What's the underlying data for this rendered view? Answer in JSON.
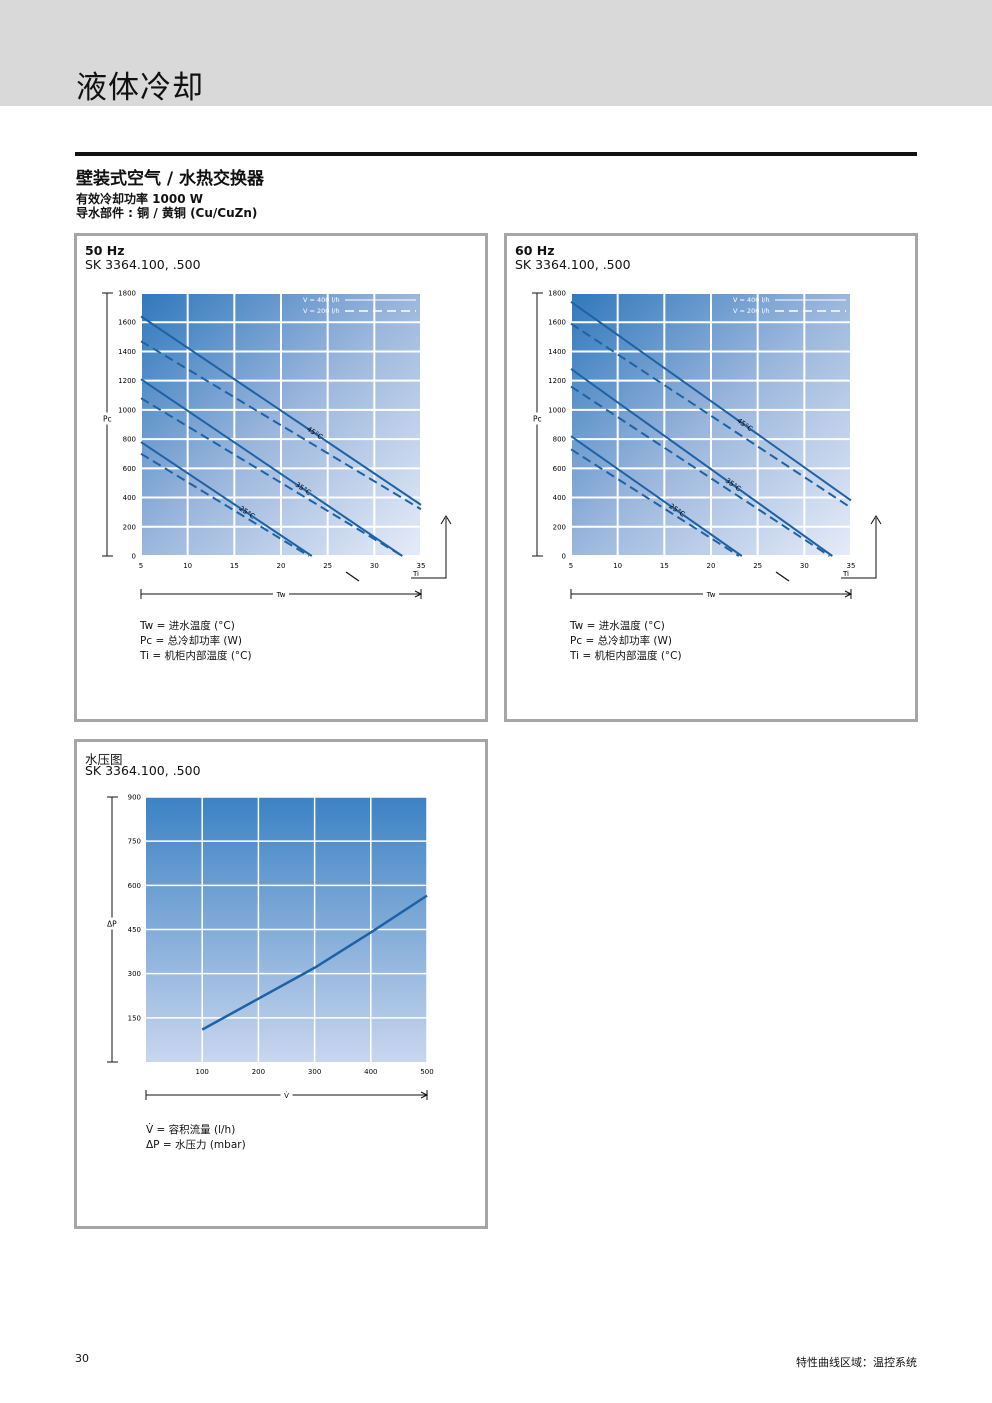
{
  "page": {
    "title": "液体冷却",
    "heading": "壁装式空气 / 水热交换器",
    "subheading1": "有效冷却功率 1000 W",
    "subheading2": "导水部件 : 铜 / 黄铜 (Cu/CuZn)",
    "page_number": "30",
    "footer_text": "特性曲线区域：温控系统"
  },
  "panels": {
    "hz50": {
      "title": "50 Hz",
      "model": "SK 3364.100, .500",
      "legend": [
        "Tw = 进水温度 (°C)",
        "Pc = 总冷却功率 (W)",
        "Ti = 机柜内部温度 (°C)"
      ]
    },
    "hz60": {
      "title": "60 Hz",
      "model": "SK 3364.100, .500",
      "legend": [
        "Tw = 进水温度 (°C)",
        "Pc = 总冷却功率 (W)",
        "Ti = 机柜内部温度 (°C)"
      ]
    },
    "pressure": {
      "title": "水压图",
      "model": "SK 3364.100, .500",
      "legend": [
        "V̇ = 容积流量 (l/h)",
        "ΔP = 水压力 (mbar)"
      ]
    }
  },
  "chart_data": [
    {
      "type": "line",
      "title": "50 Hz",
      "xlabel": "Tw",
      "ylabel": "Pc",
      "xlim": [
        5,
        35
      ],
      "ylim": [
        0,
        1800
      ],
      "x_ticks": [
        5,
        10,
        15,
        20,
        25,
        30,
        35
      ],
      "y_ticks": [
        0,
        200,
        400,
        600,
        800,
        1000,
        1200,
        1400,
        1600,
        1800
      ],
      "grid": true,
      "legend_position": "top-right",
      "legend_entries": [
        "V = 400 l/h",
        "V = 200 l/h"
      ],
      "extra_axis_label": "Ti",
      "series": [
        {
          "name": "V = 400 l/h",
          "label": "45°C",
          "x": [
            5,
            35
          ],
          "y": [
            1640,
            350
          ]
        },
        {
          "name": "V = 200 l/h",
          "label": "45°C",
          "x": [
            5,
            35
          ],
          "y": [
            1470,
            320
          ]
        },
        {
          "name": "V = 400 l/h",
          "label": "35°C",
          "x": [
            5,
            33
          ],
          "y": [
            1210,
            0
          ]
        },
        {
          "name": "V = 200 l/h",
          "label": "35°C",
          "x": [
            5,
            33
          ],
          "y": [
            1080,
            0
          ]
        },
        {
          "name": "V = 400 l/h",
          "label": "25°C",
          "x": [
            5,
            23.3
          ],
          "y": [
            780,
            0
          ]
        },
        {
          "name": "V = 200 l/h",
          "label": "25°C",
          "x": [
            5,
            23
          ],
          "y": [
            700,
            0
          ]
        }
      ]
    },
    {
      "type": "line",
      "title": "60 Hz",
      "xlabel": "Tw",
      "ylabel": "Pc",
      "xlim": [
        5,
        35
      ],
      "ylim": [
        0,
        1800
      ],
      "x_ticks": [
        5,
        10,
        15,
        20,
        25,
        30,
        35
      ],
      "y_ticks": [
        0,
        200,
        400,
        600,
        800,
        1000,
        1200,
        1400,
        1600,
        1800
      ],
      "grid": true,
      "legend_position": "top-right",
      "legend_entries": [
        "V = 400 l/h",
        "V = 200 l/h"
      ],
      "extra_axis_label": "Ti",
      "series": [
        {
          "name": "V = 400 l/h",
          "label": "45°C",
          "x": [
            5,
            35
          ],
          "y": [
            1740,
            380
          ]
        },
        {
          "name": "V = 200 l/h",
          "label": "45°C",
          "x": [
            5,
            35
          ],
          "y": [
            1590,
            330
          ]
        },
        {
          "name": "V = 400 l/h",
          "label": "35°C",
          "x": [
            5,
            33
          ],
          "y": [
            1280,
            0
          ]
        },
        {
          "name": "V = 200 l/h",
          "label": "35°C",
          "x": [
            5,
            32.7
          ],
          "y": [
            1160,
            0
          ]
        },
        {
          "name": "V = 400 l/h",
          "label": "25°C",
          "x": [
            5,
            23.3
          ],
          "y": [
            820,
            0
          ]
        },
        {
          "name": "V = 200 l/h",
          "label": "25°C",
          "x": [
            5,
            23
          ],
          "y": [
            730,
            0
          ]
        }
      ]
    },
    {
      "type": "line",
      "title": "水压图",
      "xlabel": "V̇",
      "ylabel": "ΔP",
      "xlim": [
        0,
        500
      ],
      "ylim": [
        0,
        900
      ],
      "x_ticks": [
        100,
        200,
        300,
        400,
        500
      ],
      "y_ticks": [
        150,
        300,
        450,
        600,
        750,
        900
      ],
      "grid": true,
      "series": [
        {
          "x": [
            100,
            200,
            300,
            400,
            500
          ],
          "y": [
            110,
            215,
            320,
            440,
            565
          ]
        }
      ]
    }
  ]
}
